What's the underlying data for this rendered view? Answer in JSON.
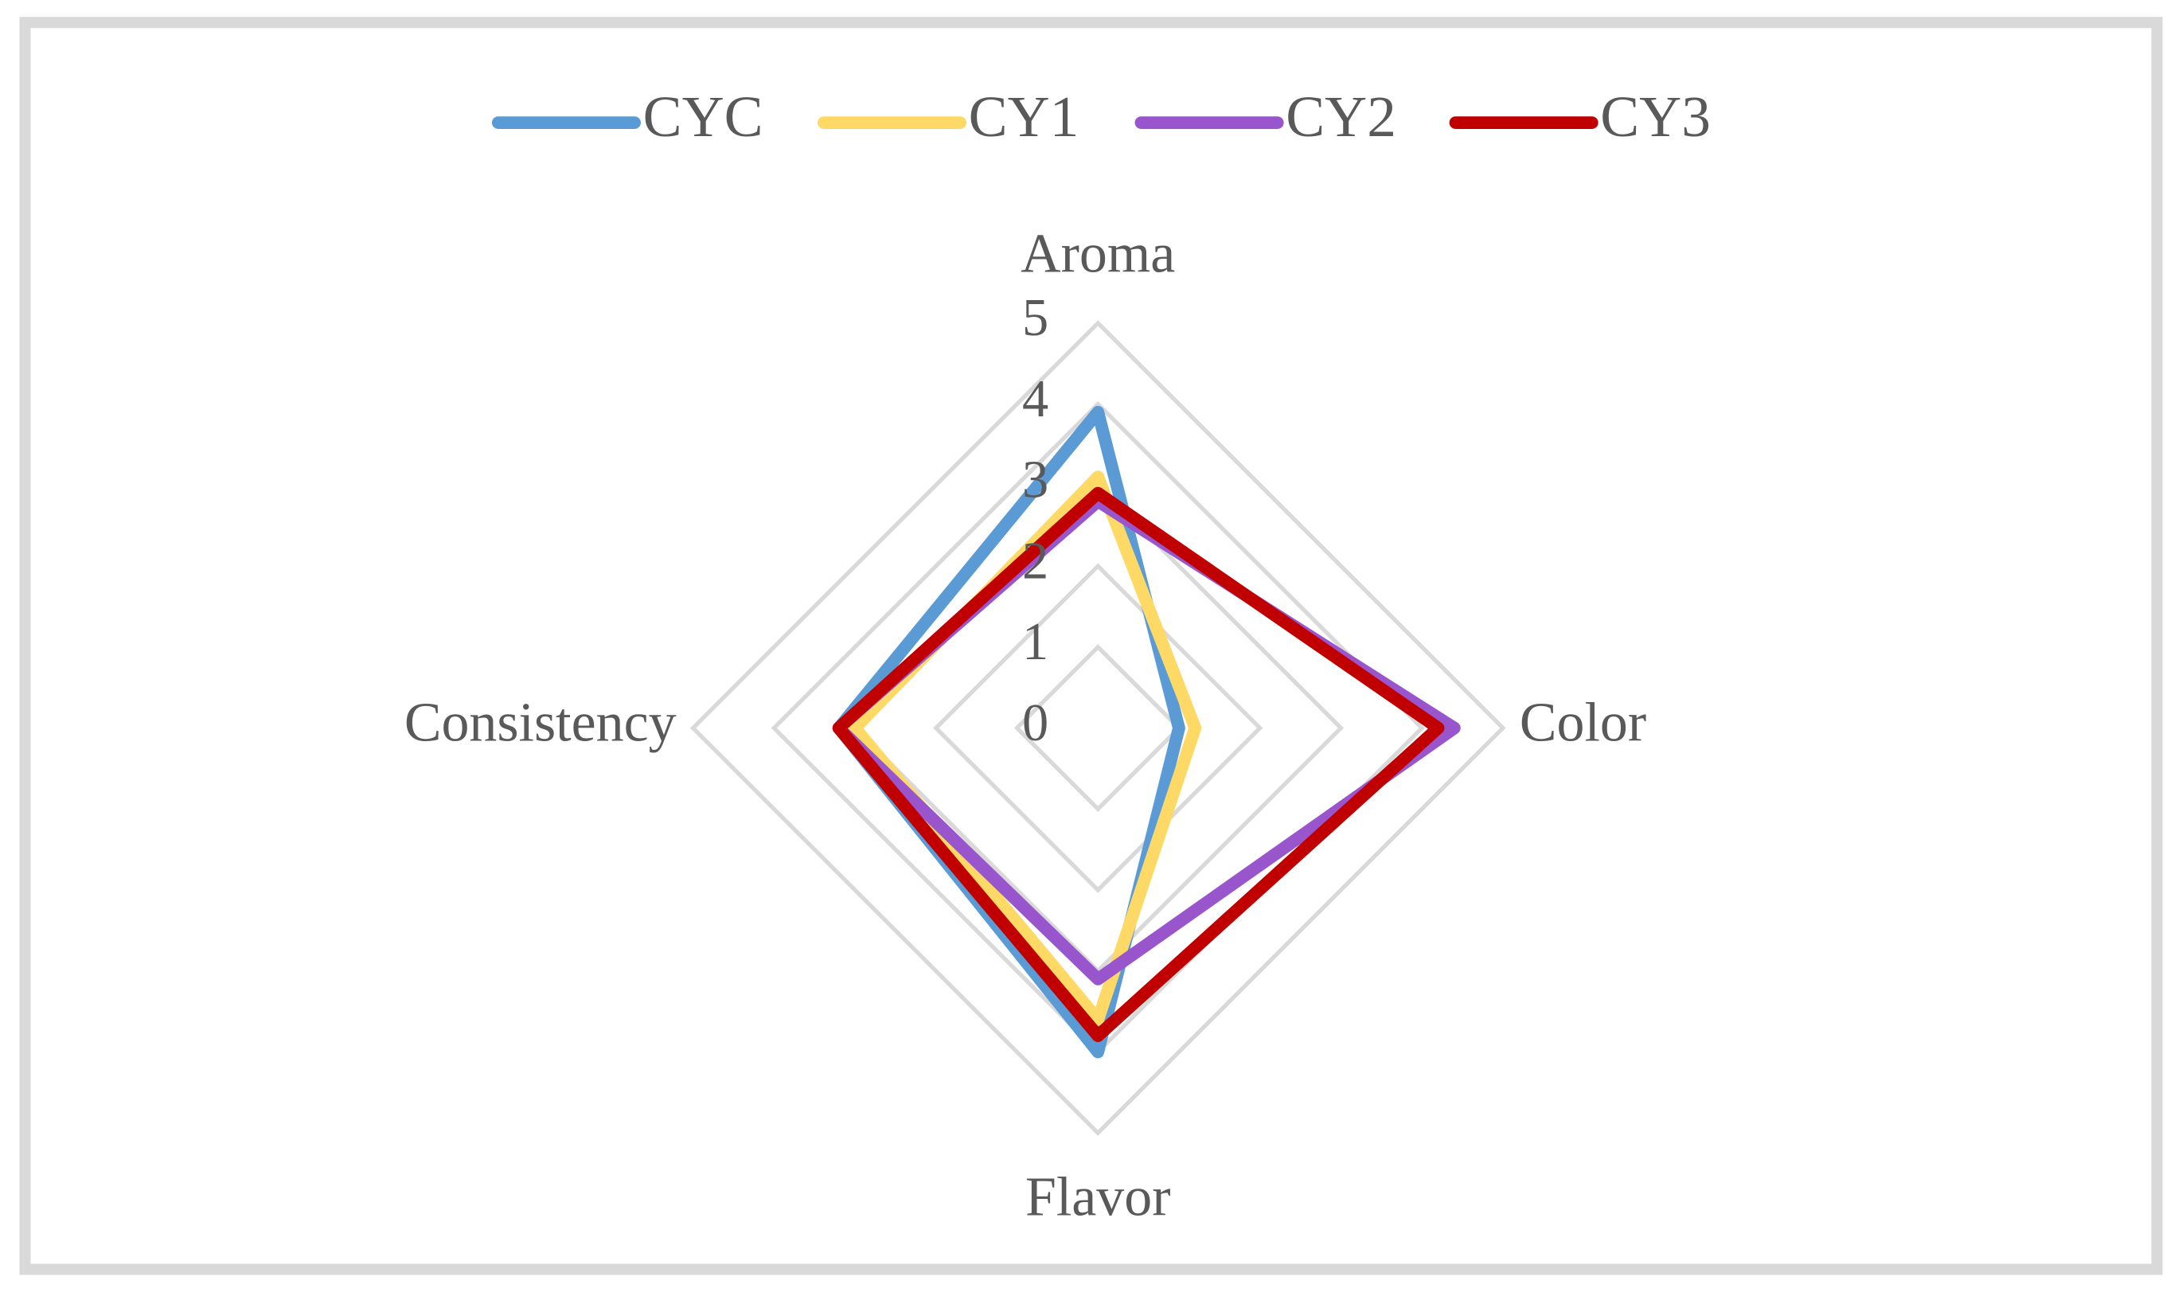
{
  "chart_data": {
    "type": "radar",
    "categories": [
      "Aroma",
      "Color",
      "Flavor",
      "Consistency"
    ],
    "series": [
      {
        "name": "CYC",
        "color": "#5b9bd5",
        "values": [
          3.9,
          1.0,
          4.0,
          3.2
        ]
      },
      {
        "name": "CY1",
        "color": "#ffd966",
        "values": [
          3.1,
          1.2,
          3.6,
          3.0
        ]
      },
      {
        "name": "CY2",
        "color": "#9955cc",
        "values": [
          2.8,
          4.4,
          3.1,
          3.2
        ]
      },
      {
        "name": "CY3",
        "color": "#c00000",
        "values": [
          2.9,
          4.2,
          3.8,
          3.2
        ]
      }
    ],
    "ylim": [
      0,
      5
    ],
    "yticks": [
      0,
      1,
      2,
      3,
      4,
      5
    ],
    "grid": true,
    "legend": "top"
  }
}
